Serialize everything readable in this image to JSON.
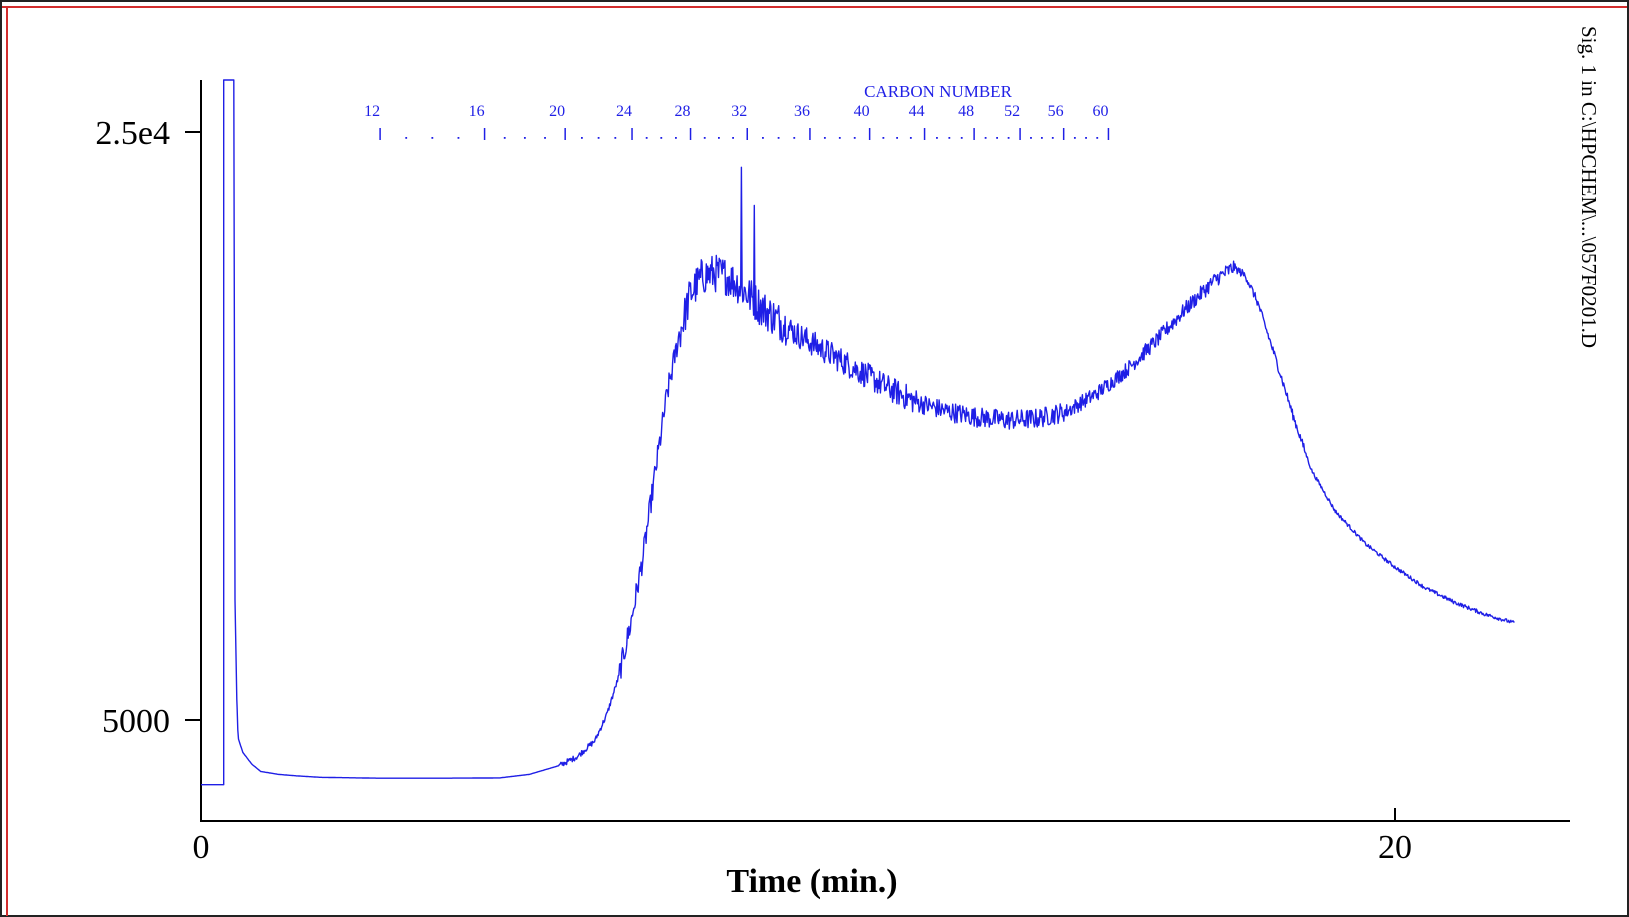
{
  "chart_data": {
    "type": "line",
    "xlabel": "Time (min.)",
    "ylabel": "",
    "signal_label": "Sig. 1 in C:\\HPCHEM\\...\\057F0201.D",
    "xlim": [
      0,
      22
    ],
    "ylim": [
      2000,
      27000
    ],
    "x_ticks": [
      {
        "value": 0,
        "label": "0"
      },
      {
        "value": 20,
        "label": "20"
      }
    ],
    "y_ticks": [
      {
        "value": 5000,
        "label": "5000"
      },
      {
        "value": 25000,
        "label": "2.5e4"
      }
    ],
    "carbon_scale": {
      "title": "CARBON NUMBER",
      "markers": [
        {
          "label": "12",
          "time": 3.0
        },
        {
          "label": "16",
          "time": 4.75
        },
        {
          "label": "20",
          "time": 6.1
        },
        {
          "label": "24",
          "time": 7.22
        },
        {
          "label": "28",
          "time": 8.2
        },
        {
          "label": "32",
          "time": 9.15
        },
        {
          "label": "36",
          "time": 10.2
        },
        {
          "label": "40",
          "time": 11.2
        },
        {
          "label": "44",
          "time": 12.12
        },
        {
          "label": "48",
          "time": 12.95
        },
        {
          "label": "52",
          "time": 13.72
        },
        {
          "label": "56",
          "time": 14.45
        },
        {
          "label": "60",
          "time": 15.2
        }
      ]
    },
    "series": [
      {
        "color": "#1f1fe6",
        "x": [
          0,
          0.38,
          0.38,
          0.42,
          0.55,
          0.6,
          0.62,
          0.7,
          0.85,
          1.0,
          1.3,
          1.6,
          2.0,
          3.0,
          4.0,
          5.0,
          5.5,
          6.0,
          6.3,
          6.6,
          6.8,
          7.0,
          7.2,
          7.4,
          7.6,
          7.8,
          8.0,
          8.2,
          8.4,
          8.6,
          8.8,
          9.0,
          9.1,
          9.2,
          9.4,
          9.6,
          9.8,
          10.0,
          10.5,
          11.0,
          11.5,
          12.0,
          12.5,
          13.0,
          13.5,
          14.0,
          14.5,
          15.0,
          15.5,
          16.0,
          16.5,
          17.0,
          17.3,
          17.5,
          17.7,
          18.0,
          18.3,
          18.6,
          19.0,
          19.5,
          20.0,
          20.5,
          21.0,
          21.5,
          22.0
        ],
        "y": [
          2800,
          2800,
          27500,
          27500,
          27500,
          5700,
          4400,
          3900,
          3500,
          3250,
          3150,
          3100,
          3050,
          3020,
          3020,
          3030,
          3150,
          3450,
          3750,
          4300,
          5200,
          6500,
          8300,
          10500,
          13300,
          16000,
          18000,
          19500,
          20100,
          20200,
          20100,
          19800,
          19600,
          19400,
          19000,
          18700,
          18400,
          18100,
          17500,
          16900,
          16300,
          15800,
          15500,
          15300,
          15200,
          15250,
          15500,
          16100,
          16900,
          17900,
          19000,
          20000,
          20400,
          20100,
          19200,
          17300,
          15300,
          13500,
          12100,
          11000,
          10200,
          9500,
          9000,
          8600,
          8300
        ]
      }
    ],
    "spikes": [
      {
        "time": 9.05,
        "value": 23800
      },
      {
        "time": 9.27,
        "value": 22500
      }
    ]
  }
}
